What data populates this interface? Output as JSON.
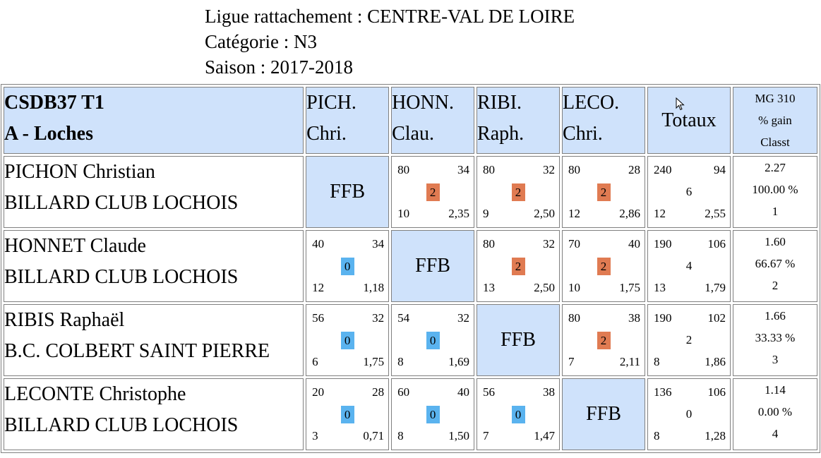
{
  "info": {
    "ligue": "Ligue rattachement : CENTRE-VAL DE LOIRE",
    "categorie": "Catégorie : N3",
    "saison": "Saison : 2017-2018"
  },
  "colors": {
    "header_bg": "#cfe2fb",
    "win_badge": "#e07b52",
    "loss_badge": "#5ab3ef"
  },
  "header": {
    "title1": "CSDB37 T1",
    "title2": "A - Loches",
    "players": [
      {
        "l1": "PICH.",
        "l2": "Chri."
      },
      {
        "l1": "HONN.",
        "l2": "Clau."
      },
      {
        "l1": "RIBI.",
        "l2": "Raph."
      },
      {
        "l1": "LECO.",
        "l2": "Chri."
      }
    ],
    "totaux": "Totaux",
    "mg1": "MG 310",
    "mg2": "% gain",
    "mg3": "Classt"
  },
  "rows": [
    {
      "name": "PICHON Christian",
      "club": "BILLARD CLUB LOCHOIS",
      "cells": [
        {
          "ffb": "FFB"
        },
        {
          "tl": "80",
          "tr": "34",
          "pts": "2",
          "bl": "10",
          "br": "2,35",
          "result": "win"
        },
        {
          "tl": "80",
          "tr": "32",
          "pts": "2",
          "bl": "9",
          "br": "2,50",
          "result": "win"
        },
        {
          "tl": "80",
          "tr": "28",
          "pts": "2",
          "bl": "12",
          "br": "2,86",
          "result": "win"
        }
      ],
      "total": {
        "tl": "240",
        "tr": "94",
        "mid": "6",
        "bl": "12",
        "br": "2,55"
      },
      "mg": {
        "avg": "2.27",
        "pct": "100.00 %",
        "rank": "1"
      }
    },
    {
      "name": "HONNET Claude",
      "club": "BILLARD CLUB LOCHOIS",
      "cells": [
        {
          "tl": "40",
          "tr": "34",
          "pts": "0",
          "bl": "12",
          "br": "1,18",
          "result": "loss"
        },
        {
          "ffb": "FFB"
        },
        {
          "tl": "80",
          "tr": "32",
          "pts": "2",
          "bl": "13",
          "br": "2,50",
          "result": "win"
        },
        {
          "tl": "70",
          "tr": "40",
          "pts": "2",
          "bl": "10",
          "br": "1,75",
          "result": "win"
        }
      ],
      "total": {
        "tl": "190",
        "tr": "106",
        "mid": "4",
        "bl": "13",
        "br": "1,79"
      },
      "mg": {
        "avg": "1.60",
        "pct": "66.67 %",
        "rank": "2"
      }
    },
    {
      "name": "RIBIS Raphaël",
      "club": "B.C. COLBERT SAINT PIERRE",
      "cells": [
        {
          "tl": "56",
          "tr": "32",
          "pts": "0",
          "bl": "6",
          "br": "1,75",
          "result": "loss"
        },
        {
          "tl": "54",
          "tr": "32",
          "pts": "0",
          "bl": "8",
          "br": "1,69",
          "result": "loss"
        },
        {
          "ffb": "FFB"
        },
        {
          "tl": "80",
          "tr": "38",
          "pts": "2",
          "bl": "7",
          "br": "2,11",
          "result": "win"
        }
      ],
      "total": {
        "tl": "190",
        "tr": "102",
        "mid": "2",
        "bl": "8",
        "br": "1,86"
      },
      "mg": {
        "avg": "1.66",
        "pct": "33.33 %",
        "rank": "3"
      }
    },
    {
      "name": "LECONTE Christophe",
      "club": "BILLARD CLUB LOCHOIS",
      "cells": [
        {
          "tl": "20",
          "tr": "28",
          "pts": "0",
          "bl": "3",
          "br": "0,71",
          "result": "loss"
        },
        {
          "tl": "60",
          "tr": "40",
          "pts": "0",
          "bl": "8",
          "br": "1,50",
          "result": "loss"
        },
        {
          "tl": "56",
          "tr": "38",
          "pts": "0",
          "bl": "7",
          "br": "1,47",
          "result": "loss"
        },
        {
          "ffb": "FFB"
        }
      ],
      "total": {
        "tl": "136",
        "tr": "106",
        "mid": "0",
        "bl": "8",
        "br": "1,28"
      },
      "mg": {
        "avg": "1.14",
        "pct": "0.00 %",
        "rank": "4"
      }
    }
  ]
}
